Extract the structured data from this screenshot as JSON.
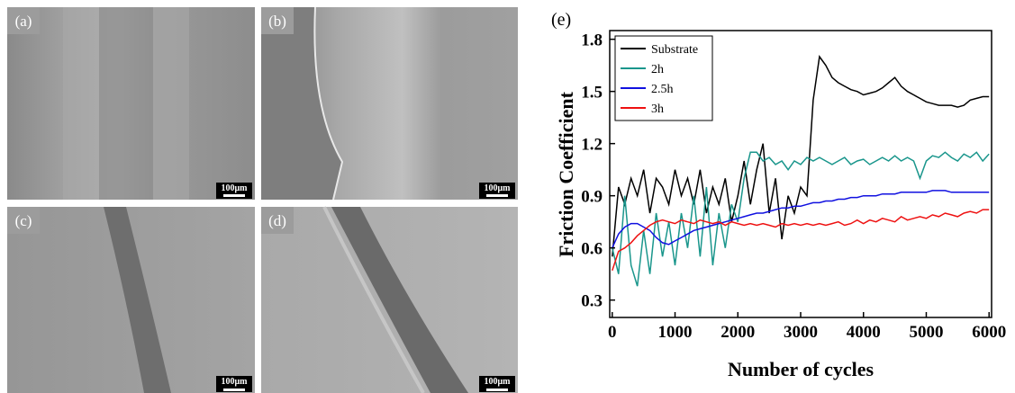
{
  "panels": [
    {
      "label": "(a)",
      "scale_bar": "100μm"
    },
    {
      "label": "(b)",
      "scale_bar": "100μm"
    },
    {
      "label": "(c)",
      "scale_bar": "100μm"
    },
    {
      "label": "(d)",
      "scale_bar": "100μm"
    }
  ],
  "chart_data": {
    "type": "line",
    "panel_label": "(e)",
    "x_label": "Number of cycles",
    "y_label": "Friction Coefficient",
    "x": [
      0,
      100,
      200,
      300,
      400,
      500,
      600,
      700,
      800,
      900,
      1000,
      1100,
      1200,
      1300,
      1400,
      1500,
      1600,
      1700,
      1800,
      1900,
      2000,
      2100,
      2200,
      2300,
      2400,
      2500,
      2600,
      2700,
      2800,
      2900,
      3000,
      3100,
      3200,
      3300,
      3400,
      3500,
      3600,
      3700,
      3800,
      3900,
      4000,
      4100,
      4200,
      4300,
      4400,
      4500,
      4600,
      4700,
      4800,
      4900,
      5000,
      5100,
      5200,
      5300,
      5400,
      5500,
      5600,
      5700,
      5800,
      5900,
      6000
    ],
    "series": [
      {
        "name": "Substrate",
        "color": "#000000",
        "values": [
          0.55,
          0.95,
          0.85,
          1.0,
          0.9,
          1.05,
          0.8,
          1.0,
          0.95,
          0.85,
          1.05,
          0.9,
          1.0,
          0.85,
          1.05,
          0.8,
          0.95,
          0.85,
          1.0,
          0.75,
          0.9,
          1.1,
          0.85,
          1.05,
          1.2,
          0.8,
          1.0,
          0.65,
          0.9,
          0.8,
          0.95,
          0.9,
          1.45,
          1.7,
          1.65,
          1.58,
          1.55,
          1.53,
          1.51,
          1.5,
          1.48,
          1.49,
          1.5,
          1.52,
          1.55,
          1.58,
          1.53,
          1.5,
          1.48,
          1.46,
          1.44,
          1.43,
          1.42,
          1.42,
          1.42,
          1.41,
          1.42,
          1.45,
          1.46,
          1.47,
          1.47
        ]
      },
      {
        "name": "2h",
        "color": "#1a968c",
        "values": [
          0.6,
          0.45,
          0.9,
          0.5,
          0.38,
          0.7,
          0.45,
          0.8,
          0.55,
          0.75,
          0.5,
          0.8,
          0.6,
          0.9,
          0.55,
          0.95,
          0.5,
          0.8,
          0.6,
          0.85,
          0.75,
          1.0,
          1.15,
          1.15,
          1.1,
          1.12,
          1.08,
          1.1,
          1.05,
          1.1,
          1.08,
          1.12,
          1.1,
          1.12,
          1.1,
          1.08,
          1.1,
          1.12,
          1.08,
          1.1,
          1.11,
          1.08,
          1.1,
          1.12,
          1.1,
          1.13,
          1.1,
          1.12,
          1.1,
          1.0,
          1.1,
          1.13,
          1.12,
          1.15,
          1.12,
          1.1,
          1.14,
          1.12,
          1.15,
          1.1,
          1.14
        ]
      },
      {
        "name": "2.5h",
        "color": "#1010e0",
        "values": [
          0.6,
          0.68,
          0.72,
          0.74,
          0.74,
          0.72,
          0.7,
          0.66,
          0.63,
          0.62,
          0.64,
          0.66,
          0.68,
          0.7,
          0.71,
          0.72,
          0.73,
          0.74,
          0.75,
          0.76,
          0.77,
          0.78,
          0.79,
          0.8,
          0.8,
          0.81,
          0.82,
          0.83,
          0.83,
          0.84,
          0.84,
          0.85,
          0.86,
          0.86,
          0.87,
          0.87,
          0.88,
          0.88,
          0.89,
          0.89,
          0.9,
          0.9,
          0.9,
          0.91,
          0.91,
          0.91,
          0.92,
          0.92,
          0.92,
          0.92,
          0.92,
          0.93,
          0.93,
          0.93,
          0.92,
          0.92,
          0.92,
          0.92,
          0.92,
          0.92,
          0.92
        ]
      },
      {
        "name": "3h",
        "color": "#ee1111",
        "values": [
          0.47,
          0.58,
          0.6,
          0.63,
          0.67,
          0.7,
          0.73,
          0.75,
          0.76,
          0.75,
          0.74,
          0.76,
          0.75,
          0.74,
          0.76,
          0.75,
          0.74,
          0.75,
          0.73,
          0.75,
          0.74,
          0.73,
          0.74,
          0.73,
          0.74,
          0.73,
          0.72,
          0.74,
          0.73,
          0.74,
          0.73,
          0.74,
          0.73,
          0.74,
          0.73,
          0.74,
          0.75,
          0.73,
          0.74,
          0.76,
          0.74,
          0.76,
          0.75,
          0.77,
          0.76,
          0.75,
          0.78,
          0.76,
          0.77,
          0.78,
          0.77,
          0.79,
          0.78,
          0.8,
          0.79,
          0.78,
          0.8,
          0.81,
          0.8,
          0.82,
          0.82
        ]
      }
    ],
    "xlim": [
      -40,
      6040
    ],
    "ylim": [
      0.2,
      1.85
    ],
    "xticks": [
      0,
      1000,
      2000,
      3000,
      4000,
      5000,
      6000
    ],
    "yticks": [
      0.3,
      0.6,
      0.9,
      1.2,
      1.5,
      1.8
    ],
    "legend": "top-left"
  }
}
